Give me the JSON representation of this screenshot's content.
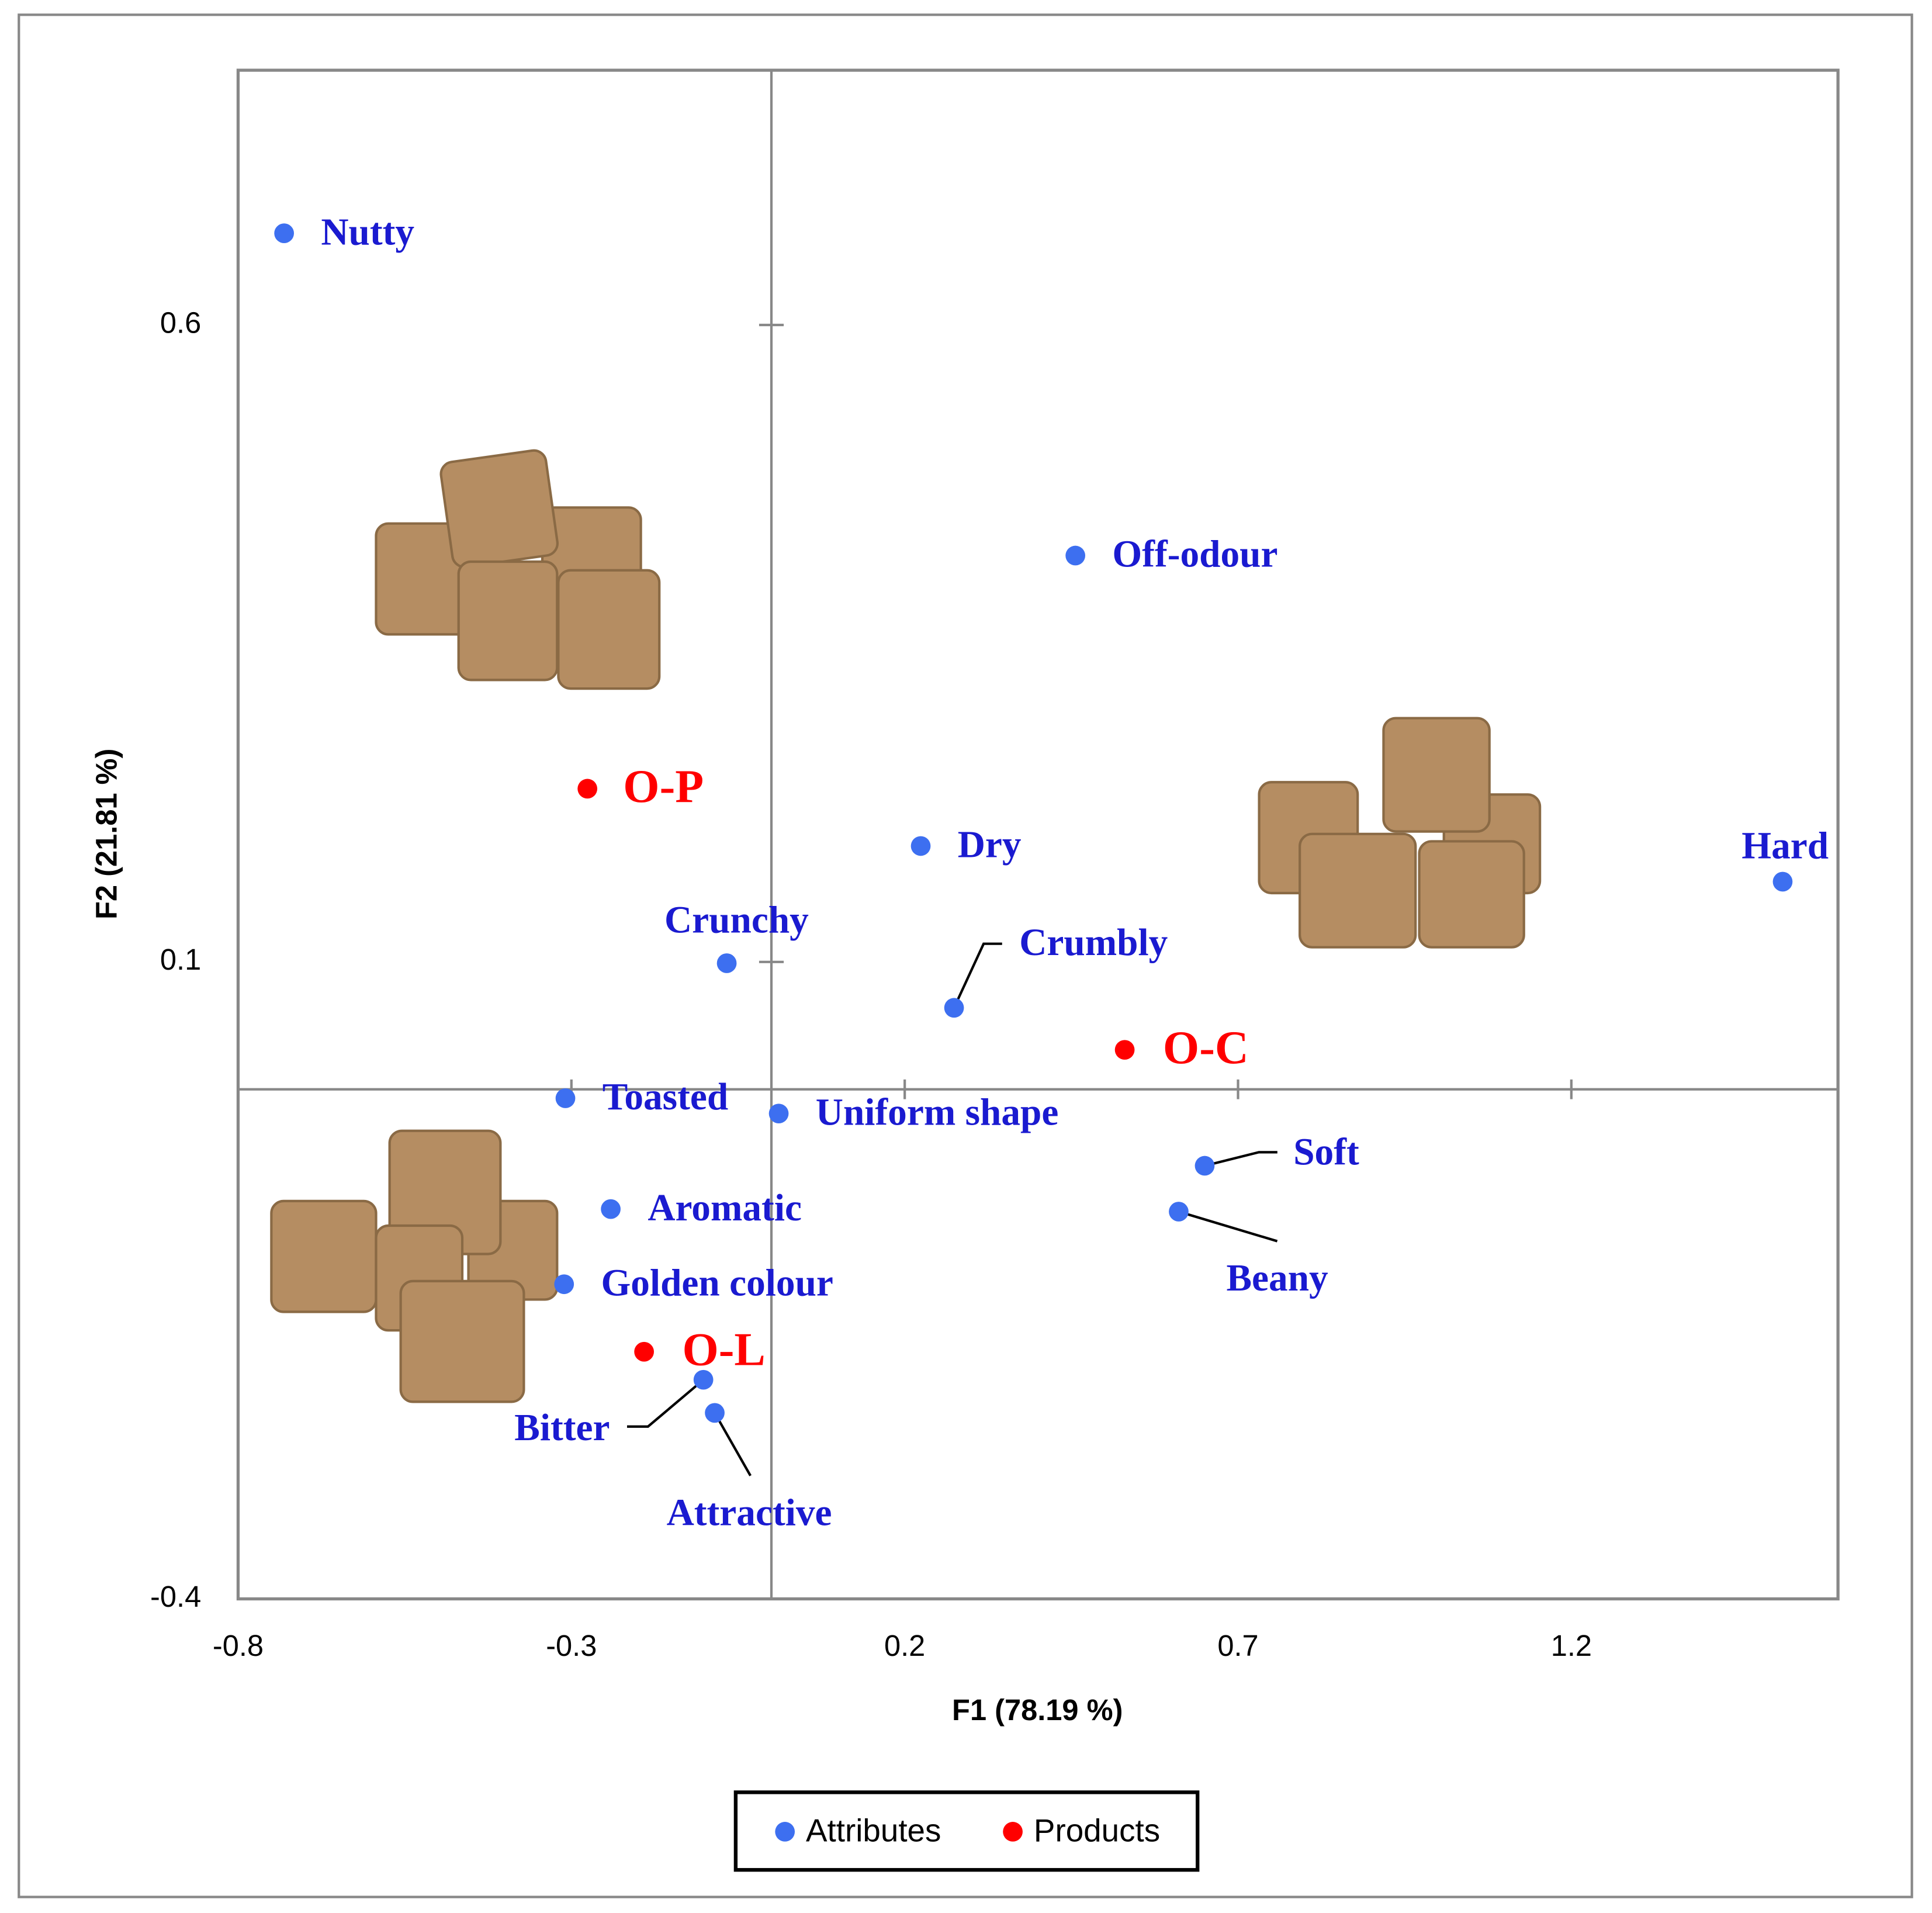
{
  "chart_data": {
    "type": "scatter",
    "x_label": "F1 (78.19 %)",
    "y_label": "F2 (21.81 %)",
    "xlim": [
      -0.8,
      1.6
    ],
    "ylim": [
      -0.4,
      0.8
    ],
    "xticks": [
      -0.8,
      -0.3,
      0.2,
      0.7,
      1.2
    ],
    "yticks": [
      -0.4,
      0.1,
      0.6
    ],
    "series": [
      {
        "name": "Attributes",
        "color": "#3d6ff0",
        "label_color": "#1a1ad0",
        "labels": [
          "Nutty",
          "Off-odour",
          "Dry",
          "Hard",
          "Crunchy",
          "Crumbly",
          "Toasted",
          "Uniform shape",
          "Soft",
          "Beany",
          "Aromatic",
          "Golden colour",
          "Bitter",
          "Attractive"
        ],
        "x": [
          -0.731,
          0.456,
          0.224,
          1.517,
          -0.067,
          0.274,
          -0.309,
          0.011,
          0.65,
          0.611,
          -0.241,
          -0.311,
          -0.102,
          -0.085
        ],
        "values": [
          0.672,
          0.419,
          0.191,
          0.163,
          0.099,
          0.064,
          -0.007,
          -0.019,
          -0.06,
          -0.096,
          -0.094,
          -0.153,
          -0.228,
          -0.254
        ]
      },
      {
        "name": "Products",
        "color": "#ff0000",
        "label_color": "#ff0000",
        "labels": [
          "O-P",
          "O-C",
          "O-L"
        ],
        "x": [
          -0.276,
          0.53,
          -0.191
        ],
        "values": [
          0.236,
          0.031,
          -0.206
        ]
      }
    ]
  }
}
